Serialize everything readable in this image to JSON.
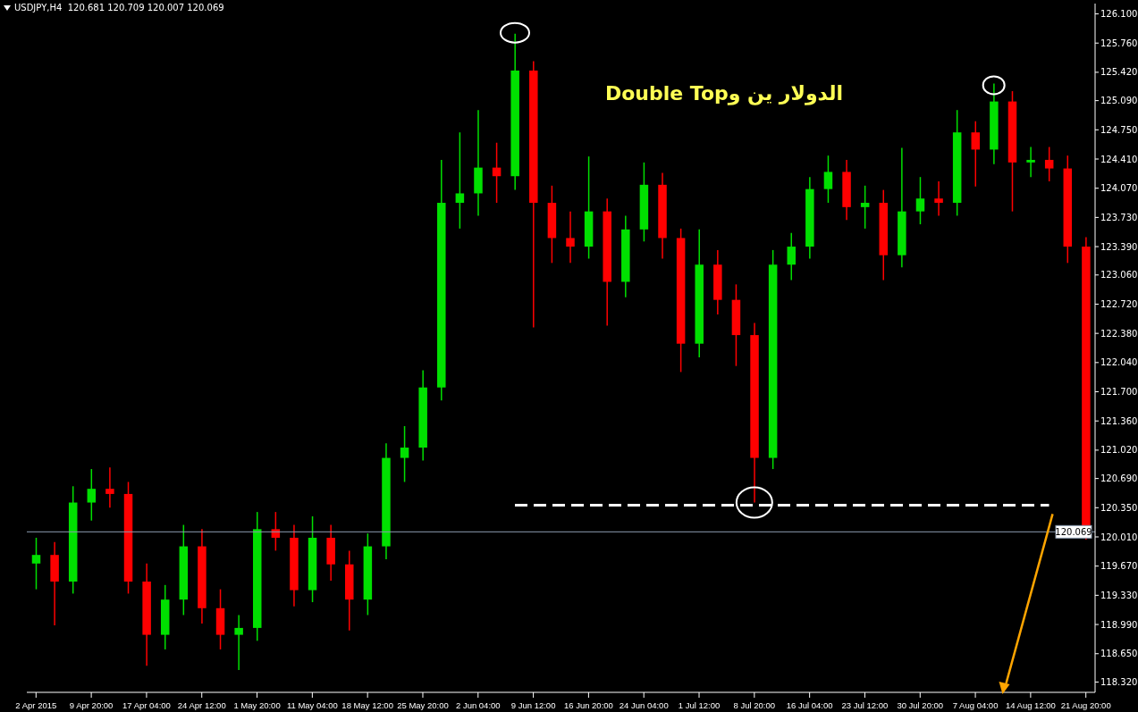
{
  "chart_data": {
    "type": "candlestick",
    "title": "الدولار ين وDouble Top",
    "subtitle": "USDJPY,H4  120.681 120.709 120.007 120.069",
    "categories": [
      "2 Apr 2015",
      null,
      null,
      "9 Apr 20:00",
      null,
      null,
      "17 Apr 04:00",
      null,
      null,
      "24 Apr 12:00",
      null,
      null,
      "1 May 20:00",
      null,
      null,
      "11 May 04:00",
      null,
      null,
      "18 May 12:00",
      null,
      null,
      "25 May 20:00",
      null,
      null,
      "2 Jun 04:00",
      null,
      null,
      "9 Jun 12:00",
      null,
      null,
      "16 Jun 20:00",
      null,
      null,
      "24 Jun 04:00",
      null,
      null,
      "1 Jul 12:00",
      null,
      null,
      "8 Jul 20:00",
      null,
      null,
      "16 Jul 04:00",
      null,
      null,
      "23 Jul 12:00",
      null,
      null,
      "30 Jul 20:00",
      null,
      null,
      "7 Aug 04:00",
      null,
      null,
      "14 Aug 12:00",
      null,
      null,
      "21 Aug 20:00"
    ],
    "ohlc": [
      [
        119.7,
        120.0,
        119.4,
        119.8
      ],
      [
        119.8,
        119.95,
        118.98,
        119.49
      ],
      [
        119.49,
        120.6,
        119.35,
        120.41
      ],
      [
        120.41,
        120.8,
        120.2,
        120.57
      ],
      [
        120.57,
        120.82,
        120.35,
        120.51
      ],
      [
        120.51,
        120.65,
        119.35,
        119.49
      ],
      [
        119.49,
        119.7,
        118.51,
        118.87
      ],
      [
        118.87,
        119.45,
        118.7,
        119.28
      ],
      [
        119.28,
        120.15,
        119.1,
        119.9
      ],
      [
        119.9,
        120.1,
        119.0,
        119.18
      ],
      [
        119.18,
        119.4,
        118.7,
        118.87
      ],
      [
        118.87,
        119.1,
        118.46,
        118.95
      ],
      [
        118.95,
        120.3,
        118.8,
        120.1
      ],
      [
        120.1,
        120.3,
        119.85,
        120.0
      ],
      [
        120.0,
        120.15,
        119.2,
        119.39
      ],
      [
        119.39,
        120.25,
        119.25,
        120.0
      ],
      [
        120.0,
        120.15,
        119.5,
        119.69
      ],
      [
        119.69,
        119.85,
        118.92,
        119.28
      ],
      [
        119.28,
        120.05,
        119.1,
        119.9
      ],
      [
        119.9,
        121.1,
        119.75,
        120.93
      ],
      [
        120.93,
        121.3,
        120.65,
        121.05
      ],
      [
        121.05,
        121.95,
        120.9,
        121.75
      ],
      [
        121.75,
        124.4,
        121.6,
        123.9
      ],
      [
        123.9,
        124.72,
        123.6,
        124.01
      ],
      [
        124.01,
        124.98,
        123.75,
        124.31
      ],
      [
        124.31,
        124.6,
        123.9,
        124.21
      ],
      [
        124.21,
        125.87,
        124.05,
        125.44
      ],
      [
        125.44,
        125.55,
        122.45,
        123.9
      ],
      [
        123.9,
        124.1,
        123.2,
        123.49
      ],
      [
        123.49,
        123.8,
        123.2,
        123.39
      ],
      [
        123.39,
        124.44,
        123.25,
        123.8
      ],
      [
        123.8,
        123.95,
        122.47,
        122.98
      ],
      [
        122.98,
        123.75,
        122.8,
        123.59
      ],
      [
        123.59,
        124.37,
        123.45,
        124.11
      ],
      [
        124.11,
        124.25,
        123.25,
        123.49
      ],
      [
        123.49,
        123.6,
        121.93,
        122.26
      ],
      [
        122.26,
        123.59,
        122.1,
        123.18
      ],
      [
        123.18,
        123.35,
        122.6,
        122.77
      ],
      [
        122.77,
        122.95,
        122.0,
        122.36
      ],
      [
        122.36,
        122.5,
        120.41,
        120.93
      ],
      [
        120.93,
        123.35,
        120.8,
        123.18
      ],
      [
        123.18,
        123.55,
        123.0,
        123.39
      ],
      [
        123.39,
        124.2,
        123.25,
        124.06
      ],
      [
        124.06,
        124.45,
        123.9,
        124.26
      ],
      [
        124.26,
        124.4,
        123.7,
        123.85
      ],
      [
        123.85,
        124.1,
        123.6,
        123.9
      ],
      [
        123.9,
        124.05,
        123.0,
        123.29
      ],
      [
        123.29,
        124.54,
        123.15,
        123.8
      ],
      [
        123.8,
        124.2,
        123.65,
        123.95
      ],
      [
        123.95,
        124.15,
        123.75,
        123.9
      ],
      [
        123.9,
        124.98,
        123.75,
        124.72
      ],
      [
        124.72,
        124.85,
        124.09,
        124.52
      ],
      [
        124.52,
        125.29,
        124.35,
        125.08
      ],
      [
        125.08,
        125.2,
        123.8,
        124.37
      ],
      [
        124.37,
        124.55,
        124.2,
        124.4
      ],
      [
        124.4,
        124.55,
        124.15,
        124.3
      ],
      [
        124.3,
        124.45,
        123.2,
        123.39
      ],
      [
        123.39,
        123.5,
        119.98,
        120.07
      ]
    ],
    "colors": [
      "#00e000",
      "#ff0000",
      "#00e000",
      "#00e000",
      "#ff0000",
      "#ff0000",
      "#ff0000",
      "#00e000",
      "#00e000",
      "#ff0000",
      "#ff0000",
      "#00e000",
      "#00e000",
      "#ff0000",
      "#ff0000",
      "#00e000",
      "#ff0000",
      "#ff0000",
      "#00e000",
      "#00e000",
      "#00e000",
      "#00e000",
      "#00e000",
      "#00e000",
      "#00e000",
      "#ff0000",
      "#00e000",
      "#ff0000",
      "#ff0000",
      "#ff0000",
      "#00e000",
      "#ff0000",
      "#00e000",
      "#00e000",
      "#ff0000",
      "#ff0000",
      "#00e000",
      "#ff0000",
      "#ff0000",
      "#ff0000",
      "#00e000",
      "#00e000",
      "#00e000",
      "#00e000",
      "#ff0000",
      "#00e000",
      "#ff0000",
      "#00e000",
      "#00e000",
      "#ff0000",
      "#00e000",
      "#ff0000",
      "#00e000",
      "#ff0000",
      "#00e000",
      "#ff0000",
      "#ff0000",
      "#ff0000"
    ],
    "series": [
      {
        "type": "line",
        "color": "#ffffff",
        "line_style": "dashed",
        "values": [
          null,
          null,
          null,
          null,
          null,
          null,
          null,
          null,
          null,
          null,
          null,
          null,
          null,
          null,
          null,
          null,
          null,
          null,
          null,
          null,
          null,
          null,
          null,
          null,
          null,
          null,
          120.38,
          120.38,
          120.38,
          120.38,
          120.38,
          120.38,
          120.38,
          120.38,
          120.38,
          120.38,
          120.38,
          120.38,
          120.38,
          120.38,
          120.38,
          120.38,
          120.38,
          120.38,
          120.38,
          120.38,
          120.38,
          120.38,
          120.38,
          120.38,
          120.38,
          120.38,
          120.38,
          120.38,
          120.38,
          120.38,
          null,
          null
        ]
      }
    ],
    "ref_lines": [
      {
        "axis": "y",
        "value": 120.069,
        "label": "120.069",
        "color": "#8c9cb0"
      }
    ],
    "ylim": [
      118.2,
      126.22
    ],
    "yticks": [
      {
        "value": 126.1,
        "label": "126.100"
      },
      {
        "value": 125.76,
        "label": "125.760"
      },
      {
        "value": 125.42,
        "label": "125.420"
      },
      {
        "value": 125.09,
        "label": "125.090"
      },
      {
        "value": 124.75,
        "label": "124.750"
      },
      {
        "value": 124.41,
        "label": "124.410"
      },
      {
        "value": 124.07,
        "label": "124.070"
      },
      {
        "value": 123.73,
        "label": "123.730"
      },
      {
        "value": 123.39,
        "label": "123.390"
      },
      {
        "value": 123.06,
        "label": "123.060"
      },
      {
        "value": 122.72,
        "label": "122.720"
      },
      {
        "value": 122.38,
        "label": "122.380"
      },
      {
        "value": 122.04,
        "label": "122.040"
      },
      {
        "value": 121.7,
        "label": "121.700"
      },
      {
        "value": 121.36,
        "label": "121.360"
      },
      {
        "value": 121.02,
        "label": "121.020"
      },
      {
        "value": 120.69,
        "label": "120.690"
      },
      {
        "value": 120.35,
        "label": "120.350"
      },
      {
        "value": 120.01,
        "label": "120.010"
      },
      {
        "value": 119.67,
        "label": "119.670"
      },
      {
        "value": 119.33,
        "label": "119.330"
      },
      {
        "value": 118.99,
        "label": "118.990"
      },
      {
        "value": 118.65,
        "label": "118.650"
      },
      {
        "value": 118.32,
        "label": "118.320"
      }
    ]
  }
}
